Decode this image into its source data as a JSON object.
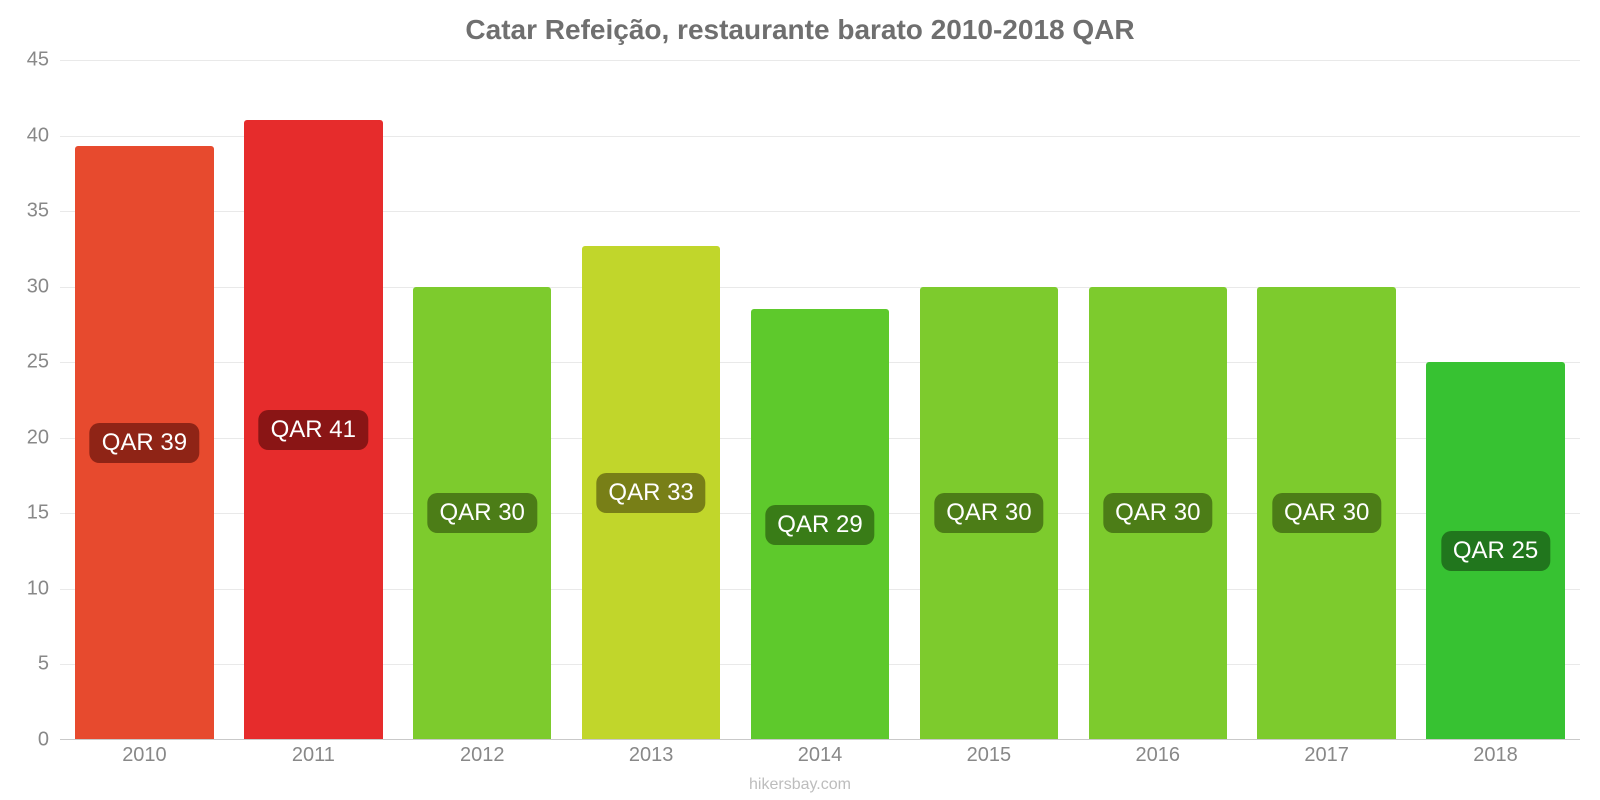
{
  "chart": {
    "type": "bar",
    "title": "Catar Refeição, restaurante barato 2010-2018 QAR",
    "title_fontsize": 28,
    "title_color": "#6f6f6f",
    "credit": "hikersbay.com",
    "credit_color": "#bdbdbd",
    "background_color": "#ffffff",
    "grid_color": "#e9e9e9",
    "axis_color": "#c9c9c9",
    "tick_label_color": "#888888",
    "tick_fontsize": 20,
    "bar_label_fontsize": 24,
    "bar_width": 0.82,
    "ylim": [
      0,
      45
    ],
    "ytick_step": 5,
    "categories": [
      "2010",
      "2011",
      "2012",
      "2013",
      "2014",
      "2015",
      "2016",
      "2017",
      "2018"
    ],
    "values": [
      39.3,
      41.0,
      30.0,
      32.7,
      28.5,
      30.0,
      30.0,
      30.0,
      25.0
    ],
    "labels": [
      "QAR 39",
      "QAR 41",
      "QAR 30",
      "QAR 33",
      "QAR 29",
      "QAR 30",
      "QAR 30",
      "QAR 30",
      "QAR 25"
    ],
    "bar_colors": [
      "#e74a2e",
      "#e62c2c",
      "#7dcb2d",
      "#c1d62b",
      "#5ec92c",
      "#7dcb2d",
      "#7dcb2d",
      "#7dcb2d",
      "#37c232"
    ],
    "label_bg_colors": [
      "#8f2416",
      "#8a1515",
      "#4c7d17",
      "#787f17",
      "#397c17",
      "#4c7d17",
      "#4c7d17",
      "#4c7d17",
      "#21761d"
    ],
    "label_text_color": "#ffffff",
    "label_border_radius": 10,
    "y_ticks": [
      0,
      5,
      10,
      15,
      20,
      25,
      30,
      35,
      40,
      45
    ]
  }
}
